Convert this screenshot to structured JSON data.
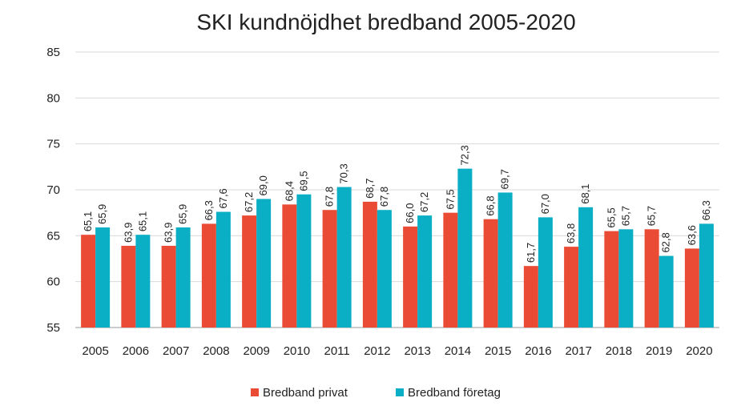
{
  "chart_data": {
    "type": "bar",
    "title": "SKI kundnöjdhet bredband 2005-2020",
    "xlabel": "",
    "ylabel": "",
    "ylim": [
      55,
      85
    ],
    "yticks": [
      55,
      60,
      65,
      70,
      75,
      80,
      85
    ],
    "grid": true,
    "legend_position": "bottom",
    "categories": [
      "2005",
      "2006",
      "2007",
      "2008",
      "2009",
      "2010",
      "2011",
      "2012",
      "2013",
      "2014",
      "2015",
      "2016",
      "2017",
      "2018",
      "2019",
      "2020"
    ],
    "series": [
      {
        "name": "Bredband privat",
        "color": "#ea4b35",
        "values": [
          65.1,
          63.9,
          63.9,
          66.3,
          67.2,
          68.4,
          67.8,
          68.7,
          66.0,
          67.5,
          66.8,
          61.7,
          63.8,
          65.5,
          65.7,
          63.6
        ],
        "labels": [
          "65,1",
          "63,9",
          "63,9",
          "66,3",
          "67,2",
          "68,4",
          "67,8",
          "68,7",
          "66,0",
          "67,5",
          "66,8",
          "61,7",
          "63,8",
          "65,5",
          "65,7",
          "63,6"
        ]
      },
      {
        "name": "Bredband företag",
        "color": "#0aaec5",
        "values": [
          65.9,
          65.1,
          65.9,
          67.6,
          69.0,
          69.5,
          70.3,
          67.8,
          67.2,
          72.3,
          69.7,
          67.0,
          68.1,
          65.7,
          62.8,
          66.3
        ],
        "labels": [
          "65,9",
          "65,1",
          "65,9",
          "67,6",
          "69,0",
          "69,5",
          "70,3",
          "67,8",
          "67,2",
          "72,3",
          "69,7",
          "67,0",
          "68,1",
          "65,7",
          "62,8",
          "66,3"
        ]
      }
    ]
  }
}
